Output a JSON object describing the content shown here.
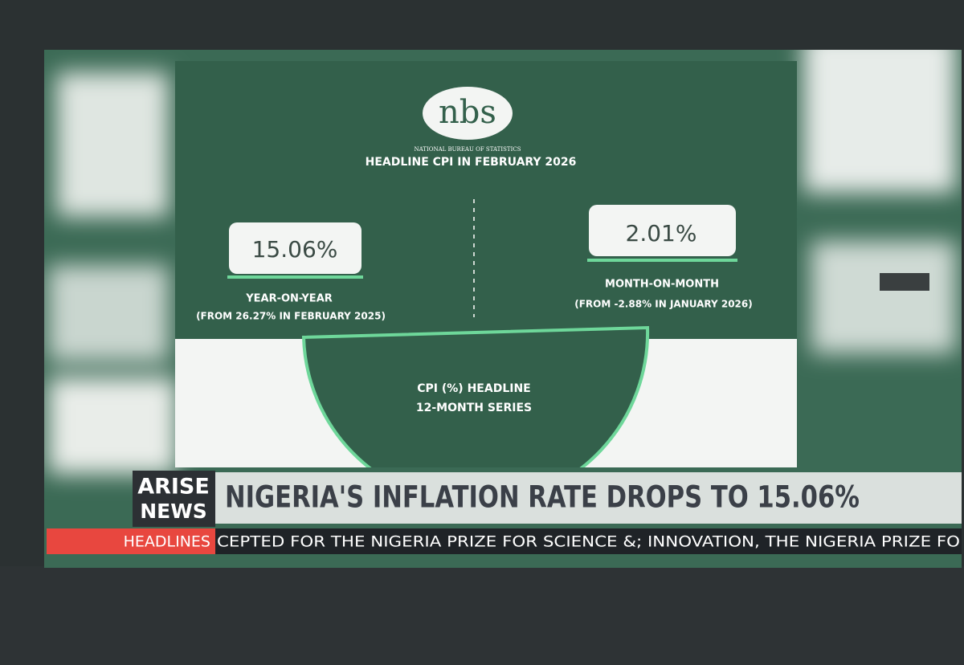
{
  "slide": {
    "logo": "nbs",
    "organization": "NATIONAL BUREAU OF STATISTICS",
    "title": "HEADLINE CPI IN FEBRUARY 2026",
    "year_on_year": {
      "value": "15.06%",
      "label": "YEAR-ON-YEAR",
      "note": "(FROM 26.27% IN FEBRUARY 2025)"
    },
    "month_on_month": {
      "value": "2.01%",
      "label": "MONTH-ON-MONTH",
      "note": "(FROM -2.88% IN JANUARY 2026)"
    },
    "center": {
      "line1": "CPI (%)  HEADLINE",
      "line2": "12-MONTH SERIES"
    }
  },
  "broadcast": {
    "brand_top": "ARISE",
    "brand_bottom": "NEWS",
    "headline": "NIGERIA'S INFLATION RATE DROPS TO 15.06%",
    "ticker_label": "HEADLINES",
    "ticker_text": "CEPTED FOR THE NIGERIA PRIZE FOR SCIENCE &; INNOVATION, THE NIGERIA PRIZE FO"
  }
}
